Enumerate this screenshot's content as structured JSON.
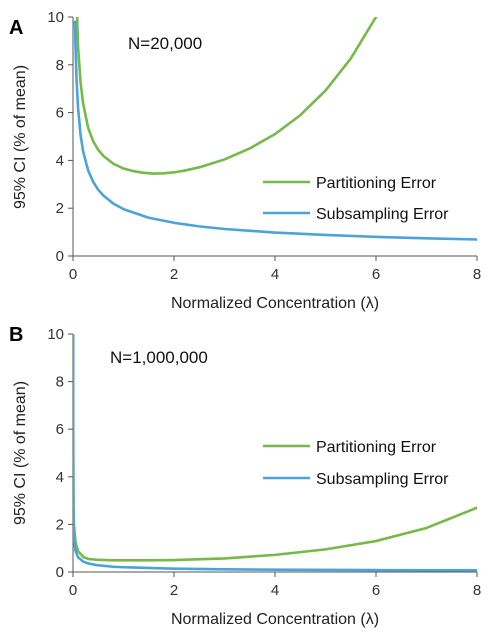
{
  "colors": {
    "partitioning": "#76B947",
    "subsampling": "#4BA3DB"
  },
  "chart_data": [
    {
      "panel": "A",
      "type": "line",
      "annotation": "N=20,000",
      "xlabel": "Normalized Concentration (λ)",
      "ylabel": "95% CI (% of mean)",
      "xlim": [
        0,
        8
      ],
      "ylim": [
        0,
        10
      ],
      "xticks": [
        "0",
        "2",
        "4",
        "6",
        "8"
      ],
      "yticks": [
        "0",
        "2",
        "4",
        "6",
        "8",
        "10"
      ],
      "legend_position": "right",
      "grid": false,
      "series": [
        {
          "name": "Partitioning Error",
          "color": "#76B947",
          "x": [
            0.05,
            0.1,
            0.15,
            0.2,
            0.3,
            0.4,
            0.5,
            0.6,
            0.8,
            1.0,
            1.2,
            1.4,
            1.6,
            1.8,
            2.0,
            2.2,
            2.5,
            3.0,
            3.5,
            4.0,
            4.5,
            5.0,
            5.5,
            6.0,
            6.15
          ],
          "y": [
            12.2,
            8.76,
            7.26,
            6.38,
            5.36,
            4.8,
            4.44,
            4.19,
            3.86,
            3.66,
            3.55,
            3.48,
            3.45,
            3.46,
            3.5,
            3.57,
            3.71,
            4.04,
            4.5,
            5.1,
            5.89,
            6.92,
            8.26,
            10.0,
            10.6
          ]
        },
        {
          "name": "Subsampling Error",
          "color": "#4BA3DB",
          "x": [
            0.04,
            0.05,
            0.07,
            0.1,
            0.15,
            0.2,
            0.3,
            0.4,
            0.5,
            0.6,
            0.8,
            1.0,
            1.5,
            2.0,
            2.5,
            3.0,
            4.0,
            5.0,
            6.0,
            7.0,
            8.0
          ],
          "y": [
            9.8,
            8.77,
            7.41,
            6.2,
            5.06,
            4.38,
            3.58,
            3.1,
            2.77,
            2.53,
            2.19,
            1.96,
            1.6,
            1.39,
            1.24,
            1.13,
            0.98,
            0.88,
            0.8,
            0.74,
            0.69
          ]
        }
      ]
    },
    {
      "panel": "B",
      "type": "line",
      "annotation": "N=1,000,000",
      "xlabel": "Normalized Concentration (λ)",
      "ylabel": "95% CI (% of mean)",
      "xlim": [
        0,
        8
      ],
      "ylim": [
        0,
        10
      ],
      "xticks": [
        "0",
        "2",
        "4",
        "6",
        "8"
      ],
      "yticks": [
        "0",
        "2",
        "4",
        "6",
        "8",
        "10"
      ],
      "legend_position": "right",
      "grid": false,
      "series": [
        {
          "name": "Partitioning Error",
          "color": "#76B947",
          "x": [
            0.002,
            0.005,
            0.01,
            0.02,
            0.05,
            0.1,
            0.2,
            0.3,
            0.5,
            0.8,
            1.0,
            1.5,
            2.0,
            3.0,
            4.0,
            5.0,
            6.0,
            7.0,
            8.0
          ],
          "y": [
            10.5,
            5.0,
            2.8,
            1.96,
            1.25,
            0.88,
            0.64,
            0.55,
            0.51,
            0.49,
            0.49,
            0.49,
            0.5,
            0.57,
            0.72,
            0.95,
            1.3,
            1.85,
            2.7
          ]
        },
        {
          "name": "Subsampling Error",
          "color": "#4BA3DB",
          "x": [
            0.002,
            0.005,
            0.01,
            0.02,
            0.05,
            0.1,
            0.2,
            0.3,
            0.5,
            0.8,
            1.0,
            2.0,
            3.0,
            4.0,
            6.0,
            8.0
          ],
          "y": [
            10.5,
            5.0,
            2.0,
            1.39,
            0.88,
            0.62,
            0.44,
            0.36,
            0.28,
            0.22,
            0.2,
            0.14,
            0.113,
            0.098,
            0.08,
            0.069
          ]
        }
      ]
    }
  ]
}
